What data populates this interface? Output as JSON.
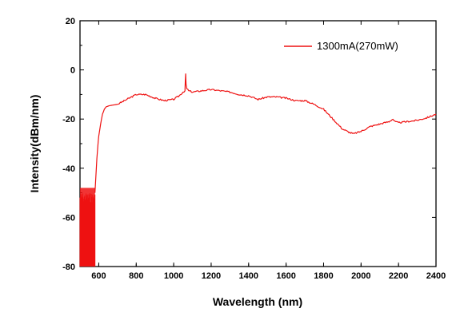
{
  "chart_data": {
    "type": "line",
    "title": "",
    "xlabel": "Wavelength (nm)",
    "ylabel": "Intensity(dBm/nm)",
    "xlim": [
      500,
      2400
    ],
    "ylim": [
      -80,
      20
    ],
    "xticks": [
      600,
      800,
      1000,
      1200,
      1400,
      1600,
      1800,
      2000,
      2200,
      2400
    ],
    "yticks": [
      -80,
      -60,
      -40,
      -20,
      0,
      20
    ],
    "grid": false,
    "legend": "top-right",
    "series": [
      {
        "name": "1300mA(270mW)",
        "color": "#ee1111",
        "x": [
          580,
          585,
          590,
          595,
          600,
          610,
          620,
          630,
          640,
          660,
          700,
          750,
          800,
          850,
          900,
          950,
          1000,
          1030,
          1050,
          1060,
          1064,
          1066,
          1070,
          1080,
          1100,
          1150,
          1200,
          1250,
          1300,
          1350,
          1400,
          1450,
          1500,
          1550,
          1600,
          1650,
          1700,
          1750,
          1800,
          1850,
          1900,
          1940,
          1960,
          1980,
          2000,
          2050,
          2100,
          2150,
          2170,
          2180,
          2200,
          2250,
          2300,
          2350,
          2400
        ],
        "y": [
          -50,
          -43,
          -36,
          -31,
          -27,
          -22,
          -18,
          -16,
          -15,
          -14.5,
          -14,
          -12,
          -10,
          -10,
          -11.5,
          -12.5,
          -12,
          -10.5,
          -9,
          -8.5,
          -1.5,
          -6,
          -7.5,
          -8.5,
          -9,
          -8.5,
          -8,
          -8.5,
          -9,
          -10,
          -10.5,
          -12,
          -11,
          -11,
          -11.5,
          -12.5,
          -12.5,
          -14,
          -16,
          -20,
          -24,
          -25.5,
          -26,
          -25.5,
          -25,
          -23,
          -22,
          -21,
          -20,
          -21,
          -21.5,
          -21,
          -20.5,
          -19.5,
          -18
        ]
      }
    ],
    "noise_band": {
      "x_range": [
        500,
        580
      ],
      "y_range": [
        -80,
        -50
      ]
    }
  }
}
